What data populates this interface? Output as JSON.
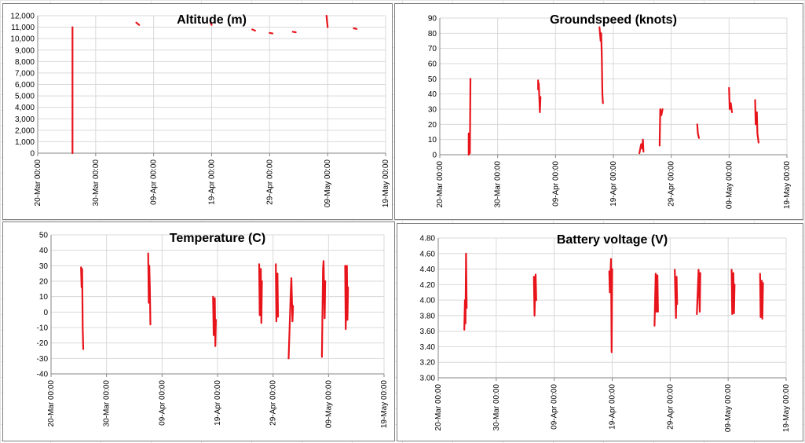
{
  "chart_data": [
    {
      "type": "line",
      "title": "Altitude (m)",
      "xlabel": "",
      "ylabel": "",
      "ylim": [
        0,
        12000
      ],
      "y_ticks": [
        "0",
        "1,000",
        "2,000",
        "3,000",
        "4,000",
        "5,000",
        "6,000",
        "7,000",
        "8,000",
        "9,000",
        "10,000",
        "11,000",
        "12,000"
      ],
      "x_range": [
        "2016-03-20",
        "2016-05-19"
      ],
      "x_ticks": [
        "20-Mar 00:00",
        "30-Mar 00:00",
        "09-Apr 00:00",
        "19-Apr 00:00",
        "29-Apr 00:00",
        "09-May 00:00",
        "19-May 00:00"
      ],
      "grid": true,
      "legend": "none",
      "color": "#e8141b",
      "segments": [
        [
          [
            "2016-03-26",
            0
          ],
          [
            "2016-03-26",
            11000
          ]
        ],
        [
          [
            "2016-04-06",
            11400
          ],
          [
            "2016-04-06.5",
            11200
          ]
        ],
        [
          [
            "2016-04-18.8",
            11400
          ],
          [
            "2016-04-19",
            11200
          ]
        ],
        [
          [
            "2016-04-26",
            10800
          ],
          [
            "2016-04-26.5",
            10700
          ]
        ],
        [
          [
            "2016-04-29",
            10500
          ],
          [
            "2016-04-29.5",
            10450
          ]
        ],
        [
          [
            "2016-05-03",
            10600
          ],
          [
            "2016-05-03.5",
            10550
          ]
        ],
        [
          [
            "2016-05-08.8",
            12000
          ],
          [
            "2016-05-09",
            11000
          ]
        ],
        [
          [
            "2016-05-13.5",
            10900
          ],
          [
            "2016-05-14",
            10850
          ]
        ]
      ]
    },
    {
      "type": "line",
      "title": "Groundspeed (knots)",
      "xlabel": "",
      "ylabel": "",
      "ylim": [
        0,
        90
      ],
      "y_ticks": [
        "0",
        "10",
        "20",
        "30",
        "40",
        "50",
        "60",
        "70",
        "80",
        "90"
      ],
      "x_range": [
        "2016-03-20",
        "2016-05-19"
      ],
      "x_ticks": [
        "20-Mar 00:00",
        "30-Mar 00:00",
        "09-Apr 00:00",
        "19-Apr 00:00",
        "29-Apr 00:00",
        "09-May 00:00",
        "19-May 00:00"
      ],
      "grid": true,
      "legend": "none",
      "color": "#e8141b",
      "segments": [
        [
          [
            "2016-03-25",
            0
          ],
          [
            "2016-03-25",
            14
          ],
          [
            "2016-03-25.2",
            1
          ],
          [
            "2016-03-25.3",
            50
          ]
        ],
        [
          [
            "2016-04-06",
            49
          ],
          [
            "2016-04-06",
            43
          ],
          [
            "2016-04-06.1",
            47
          ],
          [
            "2016-04-06.2",
            38
          ],
          [
            "2016-04-06.3",
            28
          ],
          [
            "2016-04-06.4",
            38
          ]
        ],
        [
          [
            "2016-04-16.6",
            84
          ],
          [
            "2016-04-16.8",
            75
          ],
          [
            "2016-04-16.9",
            80
          ],
          [
            "2016-04-17",
            64
          ],
          [
            "2016-04-17.1",
            40
          ],
          [
            "2016-04-17.2",
            34
          ]
        ],
        [
          [
            "2016-04-23.5",
            1
          ],
          [
            "2016-04-23.8",
            7
          ],
          [
            "2016-04-24",
            4
          ],
          [
            "2016-04-24.1",
            10
          ],
          [
            "2016-04-24.2",
            2
          ]
        ],
        [
          [
            "2016-04-27",
            6
          ],
          [
            "2016-04-27.1",
            30
          ],
          [
            "2016-04-27.3",
            26
          ],
          [
            "2016-04-27.5",
            30
          ]
        ],
        [
          [
            "2016-05-03.5",
            20
          ],
          [
            "2016-05-03.6",
            14
          ],
          [
            "2016-05-03.8",
            11
          ]
        ],
        [
          [
            "2016-05-09",
            44
          ],
          [
            "2016-05-09.1",
            30
          ],
          [
            "2016-05-09.3",
            34
          ],
          [
            "2016-05-09.5",
            28
          ]
        ],
        [
          [
            "2016-05-13.5",
            36
          ],
          [
            "2016-05-13.6",
            20
          ],
          [
            "2016-05-13.8",
            28
          ],
          [
            "2016-05-13.9",
            14
          ],
          [
            "2016-05-14.1",
            8
          ]
        ]
      ]
    },
    {
      "type": "line",
      "title": "Temperature (C)",
      "xlabel": "",
      "ylabel": "",
      "ylim": [
        -40,
        50
      ],
      "y_ticks": [
        "-40",
        "-30",
        "-20",
        "-10",
        "0",
        "10",
        "20",
        "30",
        "40",
        "50"
      ],
      "x_range": [
        "2016-03-20",
        "2016-05-19"
      ],
      "x_ticks": [
        "20-Mar 00:00",
        "30-Mar 00:00",
        "09-Apr 00:00",
        "19-Apr 00:00",
        "29-Apr 00:00",
        "09-May 00:00",
        "19-May 00:00"
      ],
      "grid": true,
      "legend": "none",
      "color": "#e8141b",
      "segments": [
        [
          [
            "2016-03-25.4",
            29
          ],
          [
            "2016-03-25.5",
            16
          ],
          [
            "2016-03-25.6",
            28
          ],
          [
            "2016-03-25.7",
            -10
          ],
          [
            "2016-03-25.8",
            -24
          ]
        ],
        [
          [
            "2016-04-06.5",
            38
          ],
          [
            "2016-04-06.6",
            6
          ],
          [
            "2016-04-06.7",
            30
          ],
          [
            "2016-04-06.8",
            16
          ],
          [
            "2016-04-06.9",
            -8
          ]
        ],
        [
          [
            "2016-04-18.2",
            10
          ],
          [
            "2016-04-18.3",
            -15
          ],
          [
            "2016-04-18.5",
            9
          ],
          [
            "2016-04-18.6",
            -22
          ],
          [
            "2016-04-18.7",
            -5
          ]
        ],
        [
          [
            "2016-04-26.5",
            31
          ],
          [
            "2016-04-26.6",
            -2
          ],
          [
            "2016-04-26.8",
            28
          ],
          [
            "2016-04-26.9",
            -7
          ],
          [
            "2016-04-27",
            20
          ]
        ],
        [
          [
            "2016-04-29.5",
            31
          ],
          [
            "2016-04-29.6",
            -6
          ],
          [
            "2016-04-29.8",
            25
          ],
          [
            "2016-04-29.9",
            -3
          ]
        ],
        [
          [
            "2016-05-01.8",
            -30
          ],
          [
            "2016-05-02.2",
            14
          ],
          [
            "2016-05-02.3",
            22
          ],
          [
            "2016-05-02.5",
            -6
          ],
          [
            "2016-05-02.6",
            4
          ]
        ],
        [
          [
            "2016-05-07.8",
            -29
          ],
          [
            "2016-05-08",
            28
          ],
          [
            "2016-05-08.1",
            33
          ],
          [
            "2016-05-08.3",
            -4
          ],
          [
            "2016-05-08.4",
            20
          ]
        ],
        [
          [
            "2016-05-12",
            30
          ],
          [
            "2016-05-12.1",
            -11
          ],
          [
            "2016-05-12.3",
            30
          ],
          [
            "2016-05-12.4",
            -5
          ],
          [
            "2016-05-12.5",
            16
          ]
        ]
      ]
    },
    {
      "type": "line",
      "title": "Battery voltage (V)",
      "xlabel": "",
      "ylabel": "",
      "ylim": [
        3.0,
        4.8
      ],
      "y_ticks": [
        "3.00",
        "3.20",
        "3.40",
        "3.60",
        "3.80",
        "4.00",
        "4.20",
        "4.40",
        "4.60",
        "4.80"
      ],
      "x_range": [
        "2016-03-20",
        "2016-05-19"
      ],
      "x_ticks": [
        "20-Mar 00:00",
        "30-Mar 00:00",
        "09-Apr 00:00",
        "19-Apr 00:00",
        "29-Apr 00:00",
        "09-May 00:00",
        "19-May 00:00"
      ],
      "grid": true,
      "legend": "none",
      "color": "#e8141b",
      "segments": [
        [
          [
            "2016-03-24.5",
            3.62
          ],
          [
            "2016-03-24.6",
            4.0
          ],
          [
            "2016-03-24.7",
            3.7
          ],
          [
            "2016-03-24.8",
            4.6
          ],
          [
            "2016-03-24.9",
            3.9
          ]
        ],
        [
          [
            "2016-04-05.5",
            4.3
          ],
          [
            "2016-04-05.6",
            3.8
          ],
          [
            "2016-04-05.8",
            4.33
          ],
          [
            "2016-04-05.9",
            4.0
          ]
        ],
        [
          [
            "2016-04-18.5",
            4.37
          ],
          [
            "2016-04-18.6",
            4.1
          ],
          [
            "2016-04-18.8",
            4.53
          ],
          [
            "2016-04-18.9",
            3.33
          ],
          [
            "2016-04-19",
            4.4
          ]
        ],
        [
          [
            "2016-04-26.3",
            3.67
          ],
          [
            "2016-04-26.5",
            4.34
          ],
          [
            "2016-04-26.6",
            3.85
          ],
          [
            "2016-04-26.8",
            4.32
          ],
          [
            "2016-04-26.9",
            3.85
          ]
        ],
        [
          [
            "2016-04-29.8",
            4.39
          ],
          [
            "2016-04-29.9",
            4.05
          ],
          [
            "2016-04-30",
            3.77
          ],
          [
            "2016-04-30.1",
            4.3
          ],
          [
            "2016-04-30.2",
            3.95
          ]
        ],
        [
          [
            "2016-05-03.6",
            3.82
          ],
          [
            "2016-05-03.8",
            4.2
          ],
          [
            "2016-05-03.9",
            4.39
          ],
          [
            "2016-05-04.1",
            3.85
          ],
          [
            "2016-05-04.2",
            4.35
          ]
        ],
        [
          [
            "2016-05-09.6",
            4.39
          ],
          [
            "2016-05-09.7",
            3.82
          ],
          [
            "2016-05-09.9",
            4.35
          ],
          [
            "2016-05-10",
            3.83
          ],
          [
            "2016-05-10.1",
            4.2
          ]
        ],
        [
          [
            "2016-05-14.5",
            4.34
          ],
          [
            "2016-05-14.6",
            3.78
          ],
          [
            "2016-05-14.8",
            4.25
          ],
          [
            "2016-05-14.9",
            3.76
          ],
          [
            "2016-05-15",
            4.22
          ]
        ]
      ]
    }
  ]
}
